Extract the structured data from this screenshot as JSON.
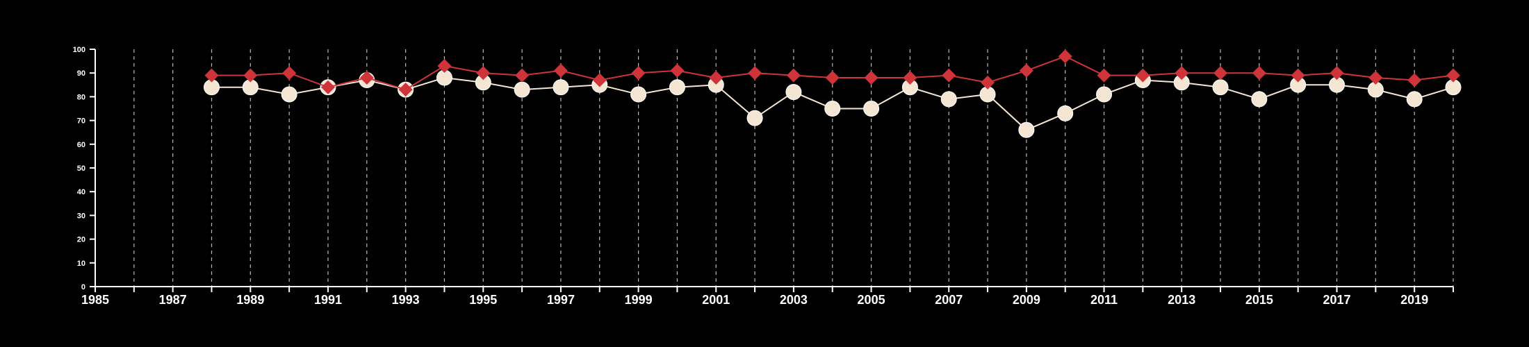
{
  "chart_data": {
    "type": "line",
    "title": "",
    "xlabel": "",
    "ylabel": "",
    "xlim": [
      1985,
      2020
    ],
    "ylim": [
      0,
      100
    ],
    "yticks": [
      0,
      10,
      20,
      30,
      40,
      50,
      60,
      70,
      80,
      90,
      100
    ],
    "xtick_labels": [
      1985,
      1987,
      1989,
      1991,
      1993,
      1995,
      1997,
      1999,
      2001,
      2003,
      2005,
      2007,
      2009,
      2011,
      2013,
      2015,
      2017,
      2019
    ],
    "grid": "vertical dashed lines at every year",
    "legend": "none",
    "x": [
      1988,
      1989,
      1990,
      1991,
      1992,
      1993,
      1994,
      1995,
      1996,
      1997,
      1998,
      1999,
      2000,
      2001,
      2002,
      2003,
      2004,
      2005,
      2006,
      2007,
      2008,
      2009,
      2010,
      2011,
      2012,
      2013,
      2014,
      2015,
      2016,
      2017,
      2018,
      2019,
      2020
    ],
    "series": [
      {
        "marker": "diamond",
        "color": "#cf343a",
        "values": [
          89,
          89,
          90,
          84,
          88,
          83,
          93,
          90,
          89,
          91,
          87,
          90,
          91,
          88,
          90,
          89,
          88,
          88,
          88,
          89,
          86,
          91,
          97,
          89,
          89,
          90,
          90,
          90,
          89,
          90,
          88,
          87,
          89
        ]
      },
      {
        "marker": "circle",
        "color": "#f5e6d3",
        "values": [
          84,
          84,
          81,
          84,
          87,
          83,
          88,
          86,
          83,
          84,
          85,
          81,
          84,
          85,
          71,
          82,
          75,
          75,
          84,
          79,
          81,
          66,
          73,
          81,
          87,
          86,
          84,
          79,
          85,
          85,
          83,
          79,
          84
        ]
      }
    ]
  }
}
